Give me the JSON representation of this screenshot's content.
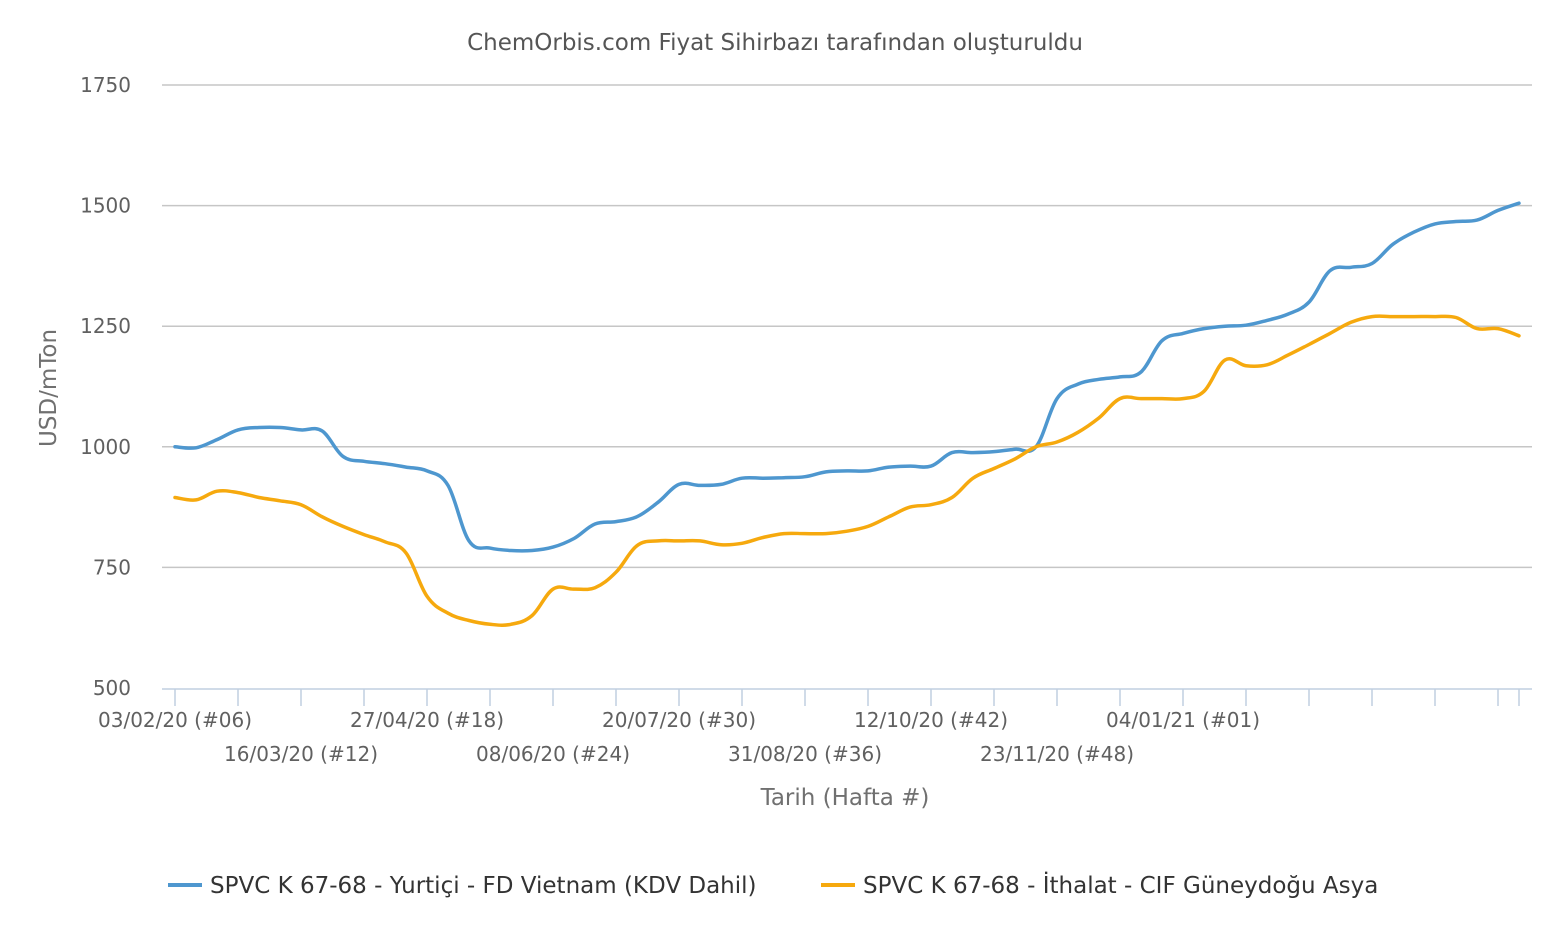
{
  "chart_data": {
    "type": "line",
    "title": "ChemOrbis.com Fiyat Sihirbazı tarafından oluşturuldu",
    "xlabel": "Tarih (Hafta #)",
    "ylabel": "USD/mTon",
    "ylim": [
      500,
      1750
    ],
    "yticks": [
      500,
      750,
      1000,
      1250,
      1500,
      1750
    ],
    "grid": true,
    "legend_position": "bottom",
    "x_start_label": "03/02/20 (#06)",
    "x_tick_labels": [
      "03/02/20 (#06)",
      "16/03/20 (#12)",
      "27/04/20 (#18)",
      "08/06/20 (#24)",
      "20/07/20 (#30)",
      "31/08/20 (#36)",
      "12/10/20 (#42)",
      "23/11/20 (#48)",
      "04/01/21 (#01)"
    ],
    "series": [
      {
        "name": "SPVC K 67-68 - Yurtiçi - FD Vietnam (KDV Dahil)",
        "color": "#4e97cf",
        "values": [
          1000,
          998,
          1015,
          1035,
          1040,
          1040,
          1035,
          1033,
          980,
          970,
          965,
          958,
          950,
          920,
          805,
          790,
          785,
          785,
          792,
          810,
          840,
          845,
          855,
          885,
          922,
          920,
          922,
          935,
          935,
          936,
          938,
          948,
          950,
          950,
          958,
          960,
          960,
          988,
          988,
          990,
          995,
          1000,
          1100,
          1130,
          1140,
          1145,
          1155,
          1220,
          1235,
          1245,
          1250,
          1252,
          1262,
          1275,
          1300,
          1365,
          1372,
          1380,
          1420,
          1445,
          1462,
          1467,
          1470,
          1490,
          1505
        ]
      },
      {
        "name": "SPVC K 67-68 - İthalat - CIF Güneydoğu Asya",
        "color": "#f6a90e",
        "values": [
          895,
          890,
          908,
          905,
          895,
          888,
          880,
          855,
          835,
          818,
          803,
          780,
          690,
          655,
          640,
          632,
          632,
          650,
          705,
          705,
          708,
          740,
          795,
          805,
          805,
          805,
          797,
          800,
          812,
          820,
          820,
          820,
          825,
          835,
          855,
          875,
          880,
          895,
          935,
          955,
          975,
          1000,
          1010,
          1030,
          1060,
          1100,
          1100,
          1100,
          1100,
          1115,
          1180,
          1168,
          1170,
          1190,
          1212,
          1235,
          1258,
          1270,
          1270,
          1270,
          1270,
          1268,
          1245,
          1245,
          1230
        ]
      }
    ]
  }
}
